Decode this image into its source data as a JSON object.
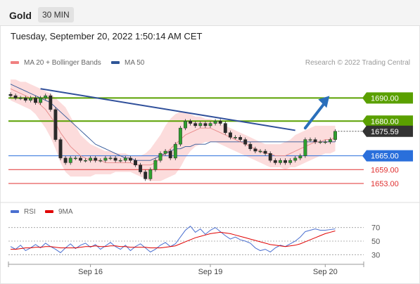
{
  "header": {
    "title": "Gold",
    "timeframe": "30 MIN"
  },
  "timestamp": "Tuesday, September 20, 2022 1:50:14 AM CET",
  "copyright": "Research © 2022 Trading Central",
  "legend": {
    "items": [
      {
        "label": "MA 20 + Bollinger Bands",
        "color": "#f08080"
      },
      {
        "label": "MA 50",
        "color": "#2f5597"
      }
    ],
    "rsi_items": [
      {
        "label": "RSI",
        "color": "#4a6fd0"
      },
      {
        "label": "9MA",
        "color": "#e00000"
      }
    ]
  },
  "chart_data": [
    {
      "type": "candlestick",
      "title": "Gold",
      "x_ticks": [
        "Sep 16",
        "Sep 19",
        "Sep 20"
      ],
      "ylim": [
        1646,
        1702
      ],
      "current_price": {
        "value": 1675.59,
        "label": "1675.59",
        "color": "#333333"
      },
      "levels": [
        {
          "value": 1690.0,
          "label": "1690.00",
          "type": "resistance",
          "color": "#5aa000"
        },
        {
          "value": 1680.0,
          "label": "1680.00",
          "type": "resistance",
          "color": "#5aa000"
        },
        {
          "value": 1665.0,
          "label": "1665.00",
          "type": "pivot",
          "color": "#2a6fdb"
        },
        {
          "value": 1659.0,
          "label": "1659.00",
          "type": "support",
          "color": "#e03030"
        },
        {
          "value": 1653.0,
          "label": "1653.00",
          "type": "support",
          "color": "#e03030"
        }
      ],
      "trendline": {
        "color": "#2f4f9a",
        "points": [
          {
            "i": 6,
            "price": 1694.0
          },
          {
            "i": 57,
            "price": 1676.0
          }
        ]
      },
      "forecast_arrow": {
        "color": "#2a6fbb",
        "from": {
          "i": 59,
          "price": 1677.0
        },
        "to": {
          "i": 63,
          "price": 1690.0
        }
      },
      "closes": [
        1691,
        1690,
        1690,
        1689,
        1690,
        1688,
        1690,
        1691,
        1685,
        1672,
        1664,
        1662,
        1664,
        1664,
        1663,
        1663,
        1664,
        1663,
        1663,
        1664,
        1664,
        1663,
        1663,
        1664,
        1663,
        1661,
        1658,
        1655,
        1659,
        1663,
        1666,
        1667,
        1664,
        1670,
        1677,
        1680,
        1679,
        1678,
        1679,
        1678,
        1679,
        1680,
        1679,
        1675,
        1673,
        1673,
        1672,
        1670,
        1668,
        1667,
        1667,
        1666,
        1663,
        1662,
        1663,
        1662,
        1663,
        1664,
        1665,
        1672,
        1672,
        1671,
        1671,
        1671,
        1672,
        1675.59
      ],
      "ma20": [
        1694,
        1693,
        1692,
        1691,
        1690,
        1689,
        1687,
        1685,
        1682,
        1679,
        1675,
        1672,
        1669,
        1667,
        1665,
        1664,
        1663,
        1663,
        1663,
        1662,
        1662,
        1662,
        1662,
        1662,
        1662,
        1661,
        1661,
        1661,
        1661,
        1662,
        1664,
        1666,
        1668,
        1670,
        1672,
        1674,
        1675,
        1676,
        1677,
        1677,
        1677,
        1676,
        1675,
        1674,
        1673,
        1672,
        1671,
        1670,
        1669,
        1668,
        1667,
        1666,
        1666,
        1665,
        1665,
        1665,
        1666,
        1667,
        1668,
        1669,
        1670,
        1671,
        1671,
        1672,
        1672,
        1673
      ],
      "bb_upper": [
        1698,
        1698,
        1697,
        1697,
        1696,
        1695,
        1694,
        1693,
        1692,
        1690,
        1688,
        1686,
        1682,
        1678,
        1674,
        1672,
        1670,
        1669,
        1668,
        1667,
        1667,
        1666,
        1666,
        1666,
        1665,
        1665,
        1665,
        1666,
        1668,
        1671,
        1674,
        1678,
        1681,
        1683,
        1684,
        1684,
        1683,
        1682,
        1682,
        1681,
        1681,
        1680,
        1679,
        1678,
        1677,
        1676,
        1675,
        1674,
        1673,
        1672,
        1671,
        1670,
        1670,
        1670,
        1670,
        1671,
        1672,
        1674,
        1675,
        1676,
        1677,
        1678,
        1678,
        1678,
        1678,
        1678
      ],
      "bb_lower": [
        1689,
        1688,
        1687,
        1686,
        1685,
        1683,
        1680,
        1677,
        1673,
        1668,
        1662,
        1658,
        1656,
        1656,
        1656,
        1656,
        1656,
        1657,
        1657,
        1657,
        1657,
        1658,
        1658,
        1658,
        1658,
        1657,
        1656,
        1655,
        1654,
        1654,
        1654,
        1655,
        1656,
        1657,
        1660,
        1664,
        1667,
        1669,
        1670,
        1671,
        1671,
        1671,
        1670,
        1669,
        1668,
        1667,
        1666,
        1665,
        1664,
        1663,
        1662,
        1661,
        1660,
        1660,
        1660,
        1659,
        1660,
        1660,
        1661,
        1662,
        1663,
        1664,
        1665,
        1666,
        1666,
        1667
      ],
      "ma50": [
        1696,
        1695,
        1694,
        1693,
        1692,
        1691,
        1690,
        1689,
        1688,
        1686,
        1684,
        1682,
        1680,
        1678,
        1676,
        1674,
        1672,
        1670,
        1669,
        1668,
        1667,
        1666,
        1665,
        1664,
        1664,
        1663,
        1663,
        1663,
        1663,
        1664,
        1665,
        1666,
        1667,
        1668,
        1668,
        1669,
        1669,
        1670,
        1670,
        1670,
        1671,
        1671,
        1671,
        1671,
        1671,
        1671,
        1671,
        1671,
        1671,
        1671,
        1671,
        1671,
        1671,
        1671,
        1671,
        1671,
        1671,
        1671,
        1671,
        1671,
        1671,
        1671,
        1671,
        1671,
        1671,
        1671
      ]
    },
    {
      "type": "line",
      "title": "RSI",
      "ylim": [
        20,
        80
      ],
      "y_ticks": [
        70,
        50,
        30
      ],
      "series": [
        {
          "name": "RSI",
          "color": "#4a6fd0",
          "values": [
            42,
            38,
            44,
            36,
            40,
            45,
            40,
            47,
            42,
            38,
            33,
            40,
            46,
            39,
            44,
            47,
            41,
            45,
            38,
            43,
            48,
            42,
            38,
            44,
            36,
            42,
            46,
            40,
            34,
            38,
            44,
            48,
            42,
            46,
            56,
            66,
            72,
            63,
            68,
            60,
            66,
            70,
            64,
            58,
            53,
            56,
            52,
            50,
            47,
            40,
            36,
            38,
            34,
            40,
            44,
            42,
            46,
            50,
            56,
            64,
            66,
            68,
            66,
            66,
            67,
            68
          ]
        },
        {
          "name": "9MA",
          "color": "#e00000",
          "values": [
            38,
            38,
            39,
            40,
            40,
            41,
            41,
            42,
            42,
            41,
            40,
            40,
            40,
            40,
            41,
            42,
            42,
            43,
            42,
            42,
            43,
            43,
            42,
            42,
            41,
            41,
            41,
            41,
            40,
            40,
            40,
            41,
            42,
            43,
            46,
            49,
            52,
            55,
            57,
            59,
            61,
            62,
            63,
            62,
            61,
            59,
            57,
            55,
            53,
            51,
            49,
            47,
            45,
            44,
            43,
            42,
            43,
            44,
            46,
            49,
            52,
            55,
            58,
            61,
            63,
            65
          ]
        }
      ]
    }
  ]
}
